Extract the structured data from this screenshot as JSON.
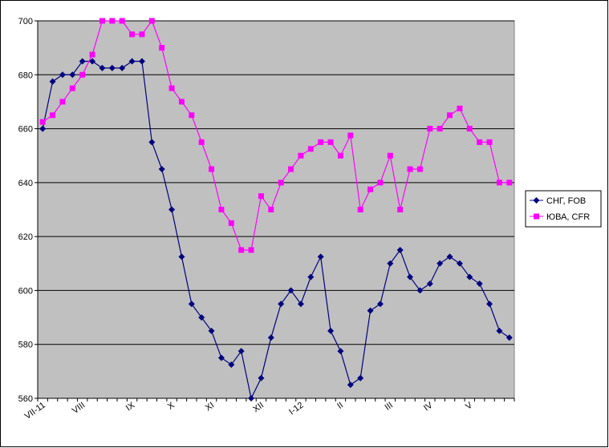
{
  "chart_data": {
    "type": "line",
    "categories": [
      "VII-11",
      null,
      null,
      null,
      "VIII",
      null,
      null,
      null,
      null,
      "IX",
      null,
      null,
      null,
      "X",
      null,
      null,
      null,
      "XI",
      null,
      null,
      null,
      null,
      "XII",
      null,
      null,
      null,
      "I-12",
      null,
      null,
      null,
      "II",
      null,
      null,
      null,
      null,
      "III",
      null,
      null,
      null,
      "IV",
      null,
      null,
      null,
      "V",
      null,
      null,
      null,
      null
    ],
    "series": [
      {
        "name": "СНГ, FOB",
        "color": "#000080",
        "marker": "diamond",
        "values": [
          660,
          677.5,
          680,
          680,
          685,
          685,
          682.5,
          682.5,
          682.5,
          685,
          685,
          655,
          645,
          630,
          612.5,
          595,
          590,
          585,
          575,
          572.5,
          577.5,
          560,
          567.5,
          582.5,
          595,
          600,
          595,
          605,
          612.5,
          585,
          577.5,
          565,
          567.5,
          592.5,
          595,
          610,
          615,
          605,
          600,
          602.5,
          610,
          612.5,
          610,
          605,
          602.5,
          595,
          585,
          582.5
        ]
      },
      {
        "name": "ЮВА, CFR",
        "color": "#ff00ff",
        "marker": "square",
        "values": [
          662.5,
          665,
          670,
          675,
          680,
          687.5,
          700,
          700,
          700,
          695,
          695,
          700,
          690,
          675,
          670,
          665,
          655,
          645,
          630,
          625,
          615,
          615,
          635,
          630,
          640,
          645,
          650,
          652.5,
          655,
          655,
          650,
          657.5,
          630,
          637.5,
          640,
          650,
          630,
          645,
          645,
          660,
          660,
          665,
          667.5,
          660,
          655,
          655,
          640,
          640
        ]
      }
    ],
    "ylim": [
      560,
      700
    ],
    "yticks": [
      560,
      580,
      600,
      620,
      640,
      660,
      680,
      700
    ],
    "grid": true,
    "legend": "right"
  }
}
